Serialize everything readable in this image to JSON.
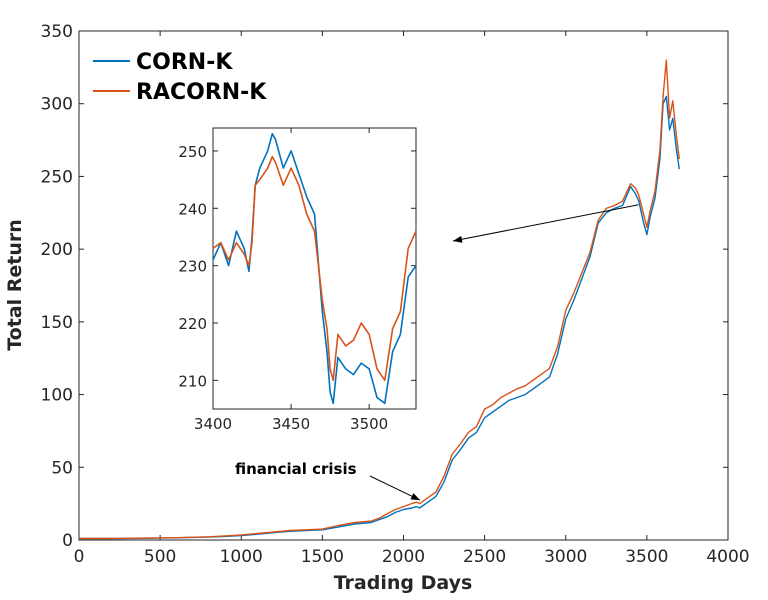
{
  "chart_data": [
    {
      "id": "main",
      "type": "line",
      "xlabel": "Trading Days",
      "ylabel": "Total Return",
      "xlim": [
        0,
        4000
      ],
      "ylim": [
        0,
        350
      ],
      "xticks": [
        0,
        500,
        1000,
        1500,
        2000,
        2500,
        3000,
        3500,
        4000
      ],
      "yticks": [
        0,
        50,
        100,
        150,
        200,
        250,
        300,
        350
      ],
      "legend_position": "top-left",
      "series": [
        {
          "name": "CORN-K",
          "color": "#0072BD",
          "x": [
            0,
            200,
            400,
            600,
            800,
            900,
            1000,
            1100,
            1200,
            1300,
            1400,
            1500,
            1600,
            1700,
            1800,
            1850,
            1900,
            1950,
            2000,
            2050,
            2080,
            2100,
            2150,
            2200,
            2250,
            2300,
            2350,
            2400,
            2450,
            2500,
            2550,
            2600,
            2650,
            2700,
            2750,
            2800,
            2850,
            2900,
            2950,
            3000,
            3050,
            3100,
            3150,
            3200,
            3250,
            3300,
            3350,
            3400,
            3430,
            3450,
            3480,
            3500,
            3520,
            3550,
            3580,
            3600,
            3620,
            3640,
            3660,
            3680,
            3700
          ],
          "y": [
            1,
            1,
            1.2,
            1.5,
            2,
            2.5,
            3,
            4,
            5,
            6,
            6.5,
            7,
            9,
            11,
            12,
            14,
            16,
            19,
            21,
            22,
            23,
            22,
            26,
            30,
            40,
            55,
            62,
            70,
            74,
            84,
            88,
            92,
            96,
            98,
            100,
            104,
            108,
            112,
            128,
            152,
            165,
            180,
            195,
            218,
            225,
            228,
            230,
            243,
            238,
            233,
            218,
            210,
            222,
            235,
            262,
            300,
            305,
            282,
            290,
            270,
            255
          ]
        },
        {
          "name": "RACORN-K",
          "color": "#D95319",
          "x": [
            0,
            200,
            400,
            600,
            800,
            900,
            1000,
            1100,
            1200,
            1300,
            1400,
            1500,
            1600,
            1700,
            1800,
            1850,
            1900,
            1950,
            2000,
            2050,
            2080,
            2100,
            2150,
            2200,
            2250,
            2300,
            2350,
            2400,
            2450,
            2500,
            2550,
            2600,
            2650,
            2700,
            2750,
            2800,
            2850,
            2900,
            2950,
            3000,
            3050,
            3100,
            3150,
            3200,
            3250,
            3300,
            3350,
            3400,
            3430,
            3450,
            3480,
            3500,
            3520,
            3550,
            3580,
            3600,
            3620,
            3640,
            3660,
            3680,
            3700
          ],
          "y": [
            1,
            1,
            1.3,
            1.6,
            2.2,
            2.8,
            3.5,
            4.5,
            5.5,
            6.5,
            7,
            7.5,
            10,
            12,
            13,
            15,
            18,
            21,
            23,
            25,
            26,
            25,
            29,
            33,
            44,
            59,
            66,
            74,
            78,
            90,
            93,
            98,
            101,
            104,
            106,
            110,
            114,
            118,
            133,
            158,
            170,
            184,
            198,
            220,
            228,
            230,
            233,
            245,
            242,
            237,
            224,
            215,
            226,
            240,
            268,
            305,
            330,
            290,
            302,
            280,
            262
          ]
        }
      ],
      "annotations": [
        {
          "text": "financial crisis",
          "x": 2090,
          "y": 26
        }
      ],
      "inset_arrow": {
        "x": 3460,
        "y": 225
      }
    },
    {
      "id": "inset",
      "type": "line",
      "xlim": [
        3400,
        3530
      ],
      "ylim": [
        205,
        254
      ],
      "xticks": [
        3400,
        3450,
        3500
      ],
      "yticks": [
        210,
        220,
        230,
        240,
        250
      ],
      "series": [
        {
          "name": "CORN-K",
          "color": "#0072BD",
          "x": [
            3400,
            3405,
            3410,
            3415,
            3420,
            3423,
            3425,
            3427,
            3430,
            3435,
            3438,
            3440,
            3445,
            3450,
            3455,
            3460,
            3465,
            3470,
            3473,
            3475,
            3477,
            3480,
            3485,
            3490,
            3495,
            3500,
            3505,
            3510,
            3515,
            3520,
            3525,
            3530
          ],
          "y": [
            231,
            234,
            230,
            236,
            233,
            229,
            235,
            244,
            247,
            250,
            253,
            252,
            247,
            250,
            246,
            242,
            239,
            222,
            215,
            208,
            206,
            214,
            212,
            211,
            213,
            212,
            207,
            206,
            215,
            218,
            228,
            230
          ]
        },
        {
          "name": "RACORN-K",
          "color": "#D95319",
          "x": [
            3400,
            3405,
            3410,
            3415,
            3420,
            3423,
            3425,
            3427,
            3430,
            3435,
            3438,
            3440,
            3445,
            3450,
            3455,
            3460,
            3465,
            3470,
            3473,
            3475,
            3477,
            3480,
            3485,
            3490,
            3495,
            3500,
            3505,
            3510,
            3515,
            3520,
            3525,
            3530
          ],
          "y": [
            233,
            234,
            231,
            234,
            232,
            230,
            234,
            244,
            245,
            247,
            249,
            248,
            244,
            247,
            244,
            239,
            236,
            224,
            219,
            212,
            210,
            218,
            216,
            217,
            220,
            218,
            212,
            210,
            219,
            222,
            233,
            236
          ]
        }
      ]
    }
  ]
}
